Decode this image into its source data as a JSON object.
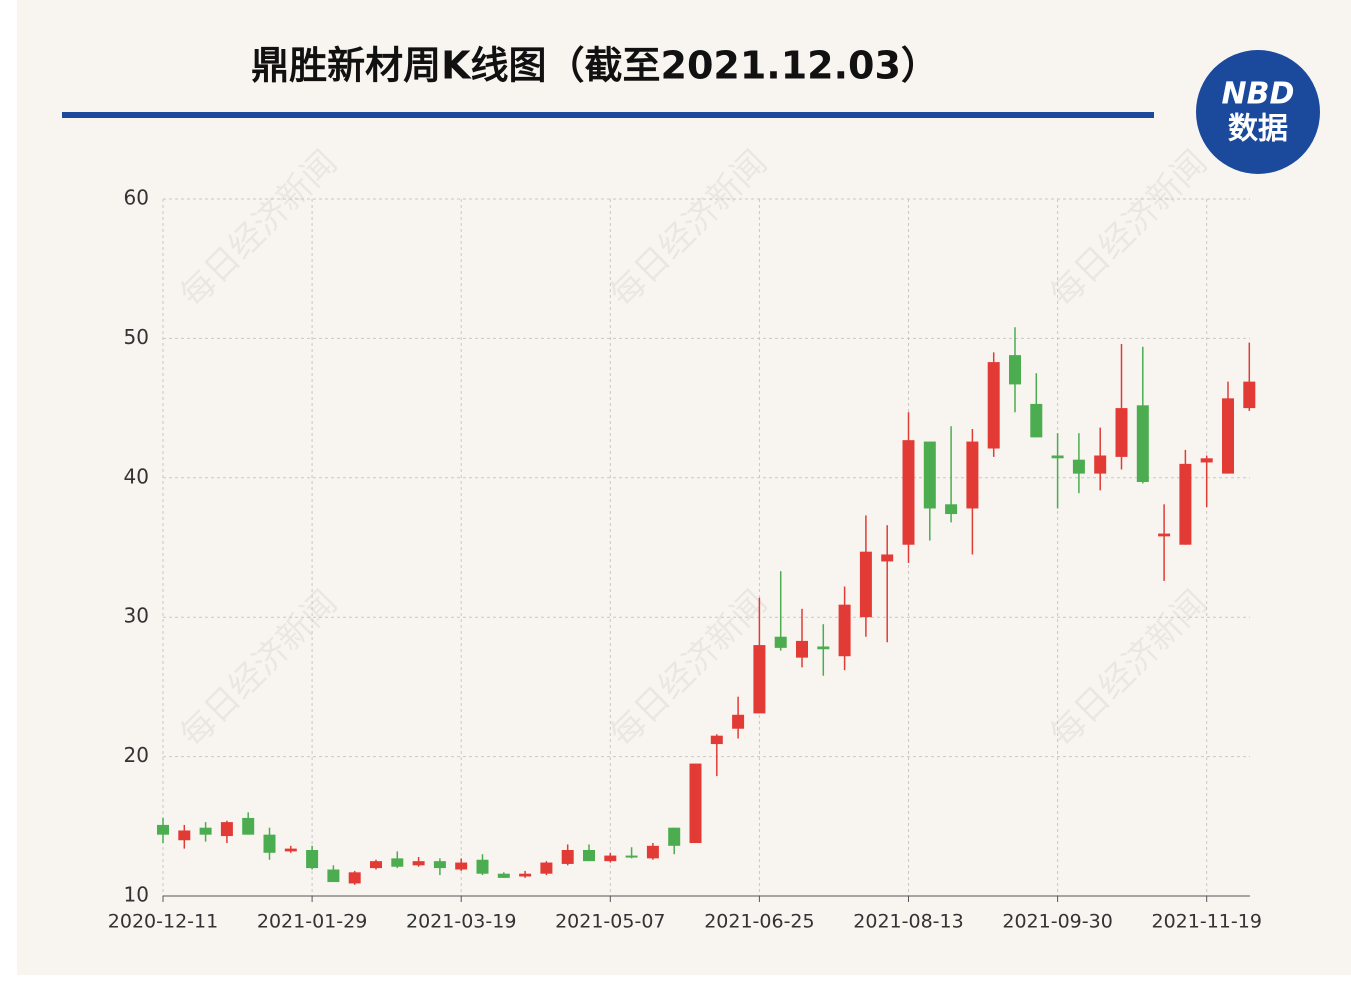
{
  "chart_data": {
    "type": "candlestick",
    "title": "鼎胜新材周K线图（截至2021.12.03）",
    "logo": {
      "line1": "NBD",
      "line2": "数据"
    },
    "watermark": "每日经济新闻",
    "categories": [
      "2020-12-11",
      null,
      null,
      null,
      null,
      null,
      null,
      "2021-01-29",
      null,
      null,
      null,
      null,
      null,
      null,
      "2021-03-19",
      null,
      null,
      null,
      null,
      null,
      null,
      "2021-05-07",
      null,
      null,
      null,
      null,
      null,
      null,
      "2021-06-25",
      null,
      null,
      null,
      null,
      null,
      null,
      "2021-08-13",
      null,
      null,
      null,
      null,
      null,
      null,
      "2021-09-30",
      null,
      null,
      null,
      null,
      null,
      null,
      "2021-11-19",
      null,
      null
    ],
    "open": [
      15.1,
      14.0,
      14.9,
      14.3,
      15.6,
      14.4,
      13.2,
      13.3,
      11.9,
      10.9,
      12.0,
      12.7,
      12.2,
      12.5,
      11.9,
      12.6,
      11.6,
      11.4,
      11.6,
      12.3,
      13.3,
      12.5,
      12.9,
      12.7,
      14.9,
      13.8,
      20.9,
      22.0,
      23.1,
      28.6,
      27.1,
      27.9,
      27.2,
      30.0,
      34.0,
      35.2,
      42.6,
      38.1,
      37.8,
      42.1,
      48.8,
      45.3,
      41.6,
      41.3,
      40.3,
      41.5,
      45.2,
      35.8,
      35.2,
      41.1,
      40.3,
      45.0
    ],
    "high": [
      15.6,
      15.1,
      15.3,
      15.4,
      16.0,
      14.9,
      13.6,
      13.6,
      12.2,
      11.8,
      12.6,
      13.2,
      12.8,
      12.7,
      12.7,
      13.0,
      11.7,
      11.8,
      12.5,
      13.7,
      13.7,
      13.1,
      13.5,
      13.8,
      14.9,
      19.5,
      21.6,
      24.3,
      31.4,
      33.3,
      30.6,
      29.5,
      32.2,
      37.3,
      36.6,
      44.7,
      42.6,
      43.7,
      43.5,
      49.0,
      50.8,
      47.5,
      43.2,
      43.2,
      43.6,
      49.6,
      49.4,
      38.1,
      42.0,
      41.6,
      46.9,
      49.7
    ],
    "low": [
      13.8,
      13.4,
      13.9,
      13.8,
      14.4,
      12.6,
      13.1,
      11.9,
      11.0,
      10.8,
      11.9,
      12.0,
      12.1,
      11.5,
      11.8,
      11.5,
      11.3,
      11.3,
      11.5,
      12.2,
      12.5,
      12.4,
      12.7,
      12.6,
      13.0,
      13.8,
      18.6,
      21.3,
      23.1,
      27.6,
      26.4,
      25.8,
      26.2,
      28.6,
      28.2,
      33.9,
      35.5,
      36.8,
      34.5,
      41.5,
      44.7,
      42.9,
      37.8,
      38.9,
      39.1,
      40.6,
      39.6,
      32.6,
      35.2,
      37.9,
      40.3,
      44.8
    ],
    "close": [
      14.4,
      14.7,
      14.4,
      15.3,
      14.4,
      13.1,
      13.4,
      12.0,
      11.0,
      11.7,
      12.5,
      12.1,
      12.5,
      12.0,
      12.4,
      11.6,
      11.3,
      11.6,
      12.4,
      13.3,
      12.5,
      12.9,
      12.8,
      13.6,
      13.6,
      19.5,
      21.5,
      23.0,
      28.0,
      27.8,
      28.3,
      27.7,
      30.9,
      34.7,
      34.5,
      42.7,
      37.8,
      37.4,
      42.6,
      48.3,
      46.7,
      42.9,
      41.4,
      40.3,
      41.6,
      45.0,
      39.7,
      36.0,
      41.0,
      41.4,
      45.7,
      46.9
    ],
    "up_color": "#e23b36",
    "down_color": "#4bad4f",
    "ylim": [
      10,
      60
    ],
    "yticks": [
      10,
      20,
      30,
      40,
      50,
      60
    ],
    "grid": true
  }
}
